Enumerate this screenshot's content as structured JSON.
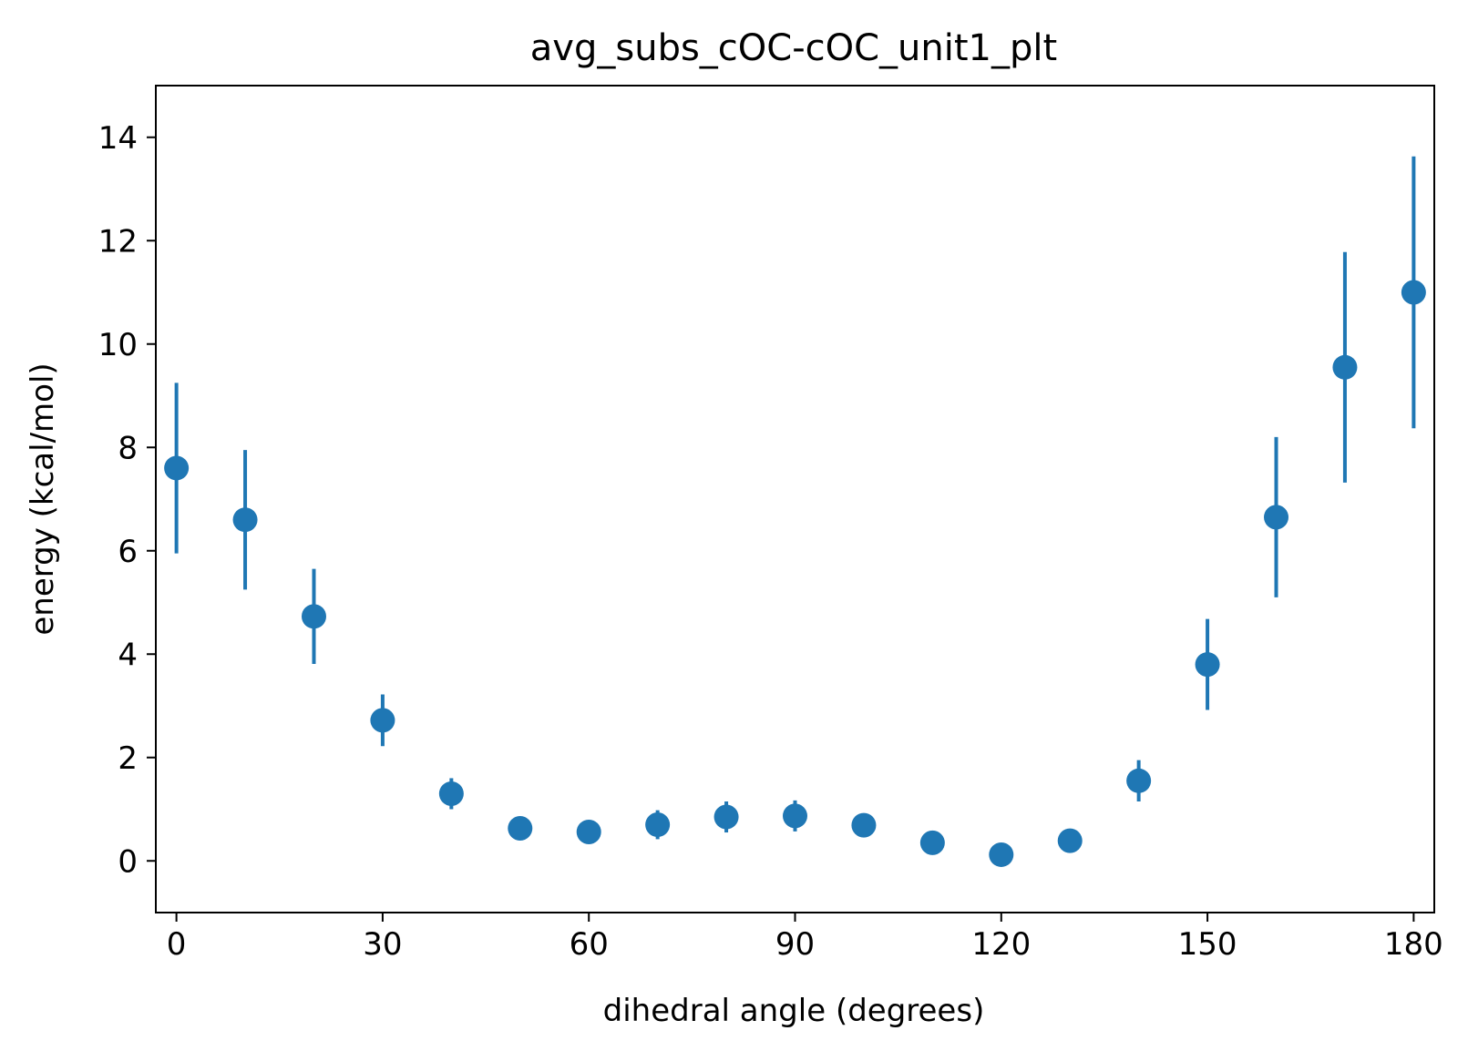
{
  "chart_data": {
    "type": "scatter",
    "title": "avg_subs_cOC-cOC_unit1_plt",
    "xlabel": "dihedral angle (degrees)",
    "ylabel": "energy (kcal/mol)",
    "xlim": [
      -3,
      183
    ],
    "ylim": [
      -1,
      15
    ],
    "xticks": [
      0,
      30,
      60,
      90,
      120,
      150,
      180
    ],
    "yticks": [
      0,
      2,
      4,
      6,
      8,
      10,
      12,
      14
    ],
    "grid": false,
    "color": "#1f77b4",
    "points": [
      {
        "x": 0,
        "y": 7.6,
        "err": 1.65
      },
      {
        "x": 10,
        "y": 6.6,
        "err": 1.35
      },
      {
        "x": 20,
        "y": 4.73,
        "err": 0.92
      },
      {
        "x": 30,
        "y": 2.72,
        "err": 0.5
      },
      {
        "x": 40,
        "y": 1.3,
        "err": 0.3
      },
      {
        "x": 50,
        "y": 0.63,
        "err": 0.12
      },
      {
        "x": 60,
        "y": 0.56,
        "err": 0.12
      },
      {
        "x": 70,
        "y": 0.7,
        "err": 0.28
      },
      {
        "x": 80,
        "y": 0.85,
        "err": 0.3
      },
      {
        "x": 90,
        "y": 0.87,
        "err": 0.3
      },
      {
        "x": 100,
        "y": 0.69,
        "err": 0.12
      },
      {
        "x": 110,
        "y": 0.35,
        "err": 0.1
      },
      {
        "x": 120,
        "y": 0.12,
        "err": 0.1
      },
      {
        "x": 130,
        "y": 0.39,
        "err": 0.1
      },
      {
        "x": 140,
        "y": 1.55,
        "err": 0.4
      },
      {
        "x": 150,
        "y": 3.8,
        "err": 0.88
      },
      {
        "x": 160,
        "y": 6.65,
        "err": 1.55
      },
      {
        "x": 170,
        "y": 9.55,
        "err": 2.23
      },
      {
        "x": 180,
        "y": 11.0,
        "err": 2.63
      }
    ]
  }
}
